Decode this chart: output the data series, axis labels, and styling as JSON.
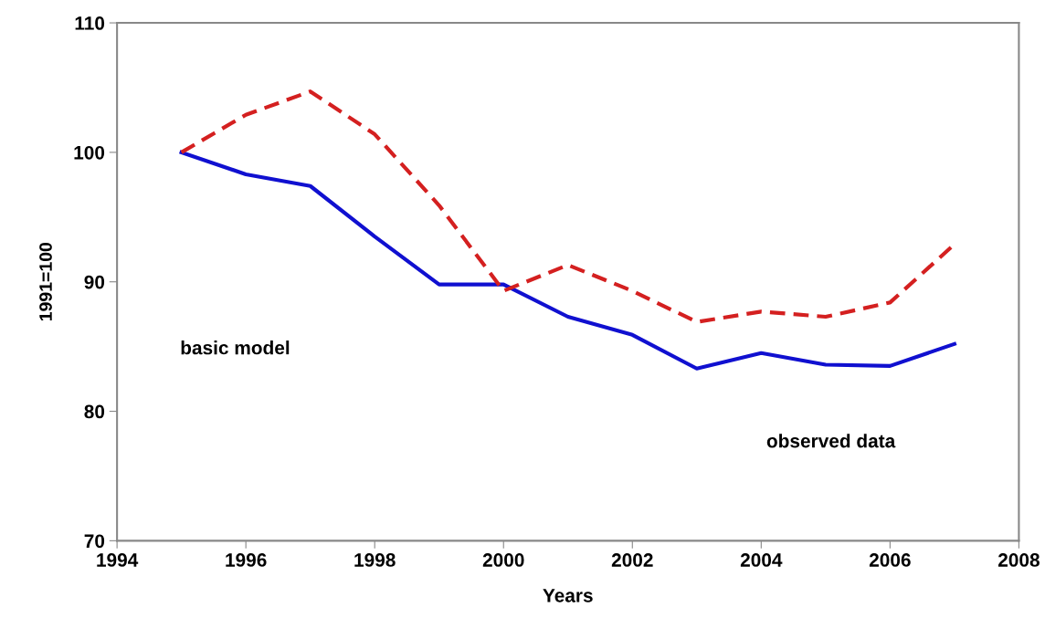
{
  "chart_data": {
    "type": "line",
    "xlabel": "Years",
    "ylabel": "1991=100",
    "x": [
      1995,
      1996,
      1997,
      1998,
      1999,
      2000,
      2001,
      2002,
      2003,
      2004,
      2005,
      2006,
      2007
    ],
    "series": [
      {
        "color": "#1010d0",
        "line_style": "solid",
        "values": [
          100,
          98.3,
          97.4,
          93.5,
          89.8,
          89.8,
          87.3,
          85.9,
          83.3,
          84.5,
          83.6,
          83.5,
          85.2
        ]
      },
      {
        "color": "#d42020",
        "line_style": "dashed",
        "values": [
          100,
          102.9,
          104.7,
          101.4,
          95.9,
          89.3,
          91.3,
          89.3,
          86.9,
          87.7,
          87.3,
          88.4,
          92.9
        ]
      }
    ],
    "xlim": [
      1994,
      2008
    ],
    "xticks": [
      1994,
      1996,
      1998,
      2000,
      2002,
      2004,
      2006,
      2008
    ],
    "ylim": [
      70,
      110
    ],
    "yticks": [
      70,
      80,
      90,
      100,
      110
    ],
    "annotations": [
      "basic model",
      "observed data"
    ],
    "grid": false,
    "legend": false,
    "marker": "none"
  }
}
